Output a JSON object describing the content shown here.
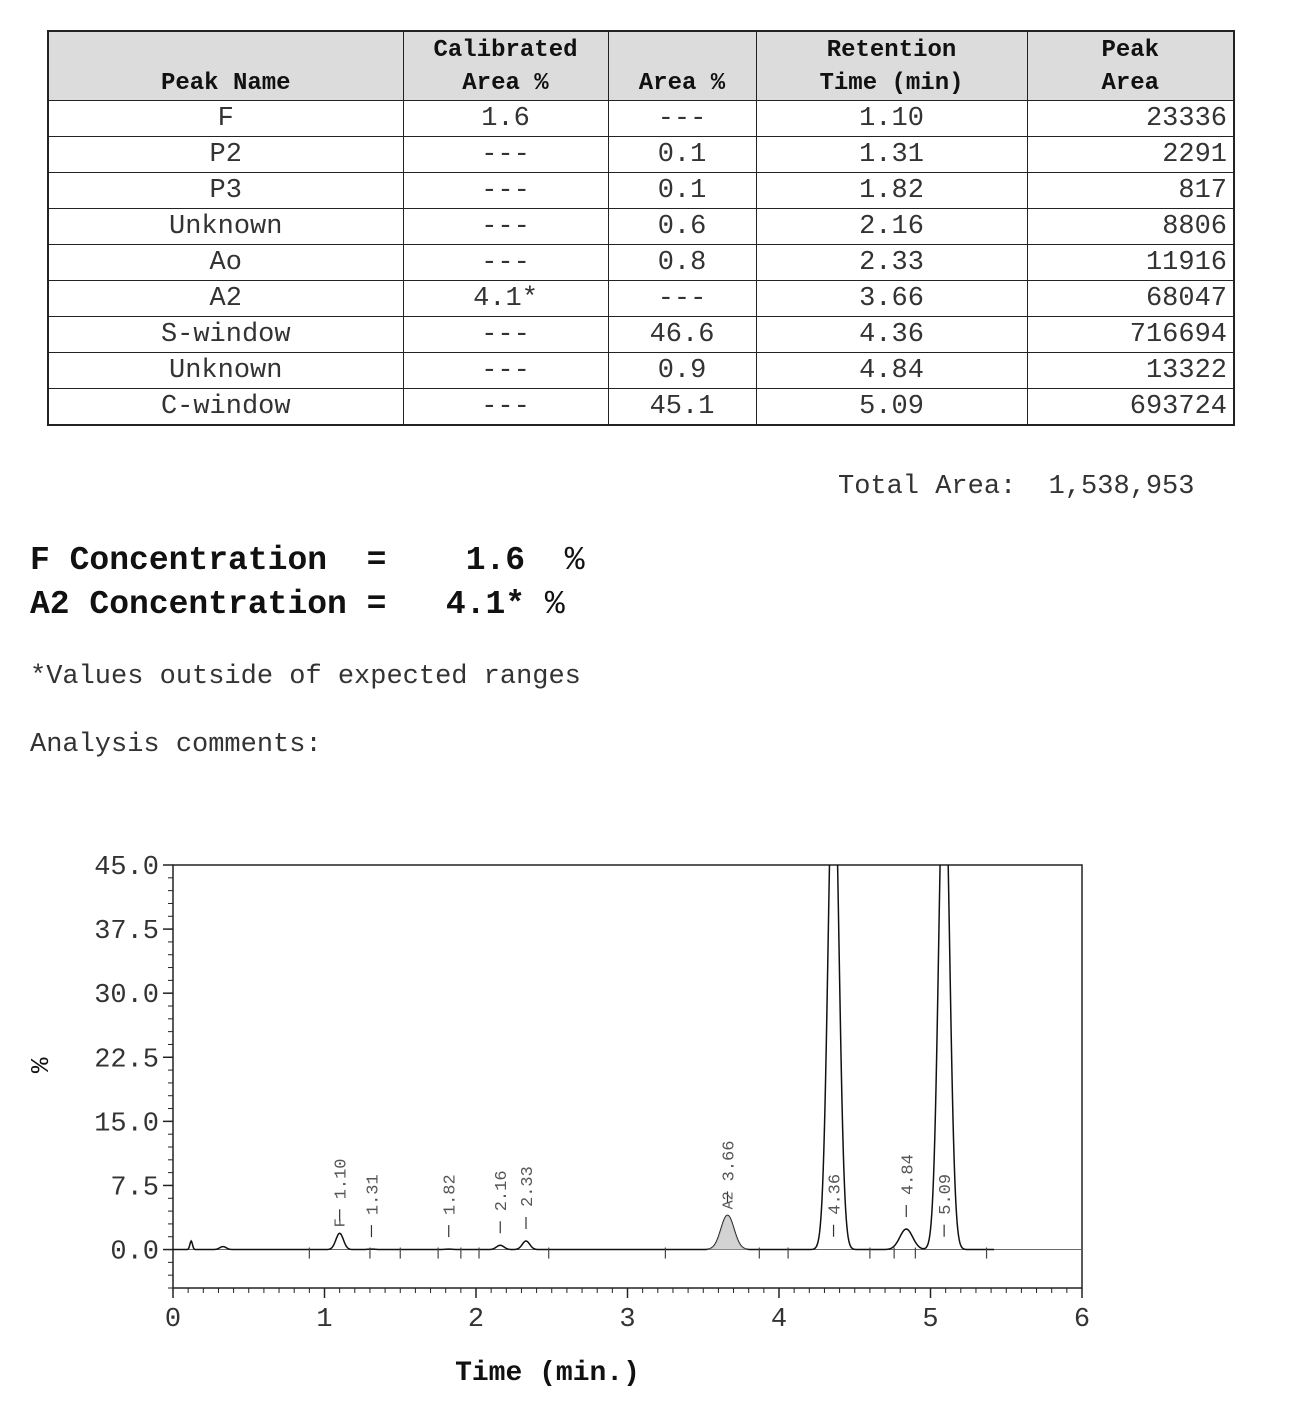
{
  "table": {
    "headers": [
      "Peak Name",
      "Calibrated Area %",
      "Area %",
      "Retention Time (min)",
      "Peak Area"
    ],
    "header_lines": [
      [
        "",
        "Peak Name"
      ],
      [
        "Calibrated",
        "Area %"
      ],
      [
        "",
        "Area %"
      ],
      [
        "Retention",
        "Time (min)"
      ],
      [
        "Peak",
        "Area"
      ]
    ],
    "rows": [
      [
        "F",
        "1.6",
        "---",
        "1.10",
        "23336"
      ],
      [
        "P2",
        "---",
        "0.1",
        "1.31",
        "2291"
      ],
      [
        "P3",
        "---",
        "0.1",
        "1.82",
        "817"
      ],
      [
        "Unknown",
        "---",
        "0.6",
        "2.16",
        "8806"
      ],
      [
        "Ao",
        "---",
        "0.8",
        "2.33",
        "11916"
      ],
      [
        "A2",
        "4.1*",
        "---",
        "3.66",
        "68047"
      ],
      [
        "S-window",
        "---",
        "46.6",
        "4.36",
        "716694"
      ],
      [
        "Unknown",
        "---",
        "0.9",
        "4.84",
        "13322"
      ],
      [
        "C-window",
        "---",
        "45.1",
        "5.09",
        "693724"
      ]
    ]
  },
  "total_area": {
    "label": "Total Area:",
    "value": "1,538,953"
  },
  "concentrations": [
    {
      "label": "F Concentration  =",
      "value": "1.6",
      "unit": "%"
    },
    {
      "label": "A2 Concentration =",
      "value": "4.1*",
      "unit": "%"
    }
  ],
  "footnote": "*Values outside of expected ranges",
  "comments_label": "Analysis comments:",
  "chart_data": {
    "type": "line",
    "xlabel": "Time (min.)",
    "ylabel": "%",
    "xlim": [
      0,
      6
    ],
    "ylim": [
      -4.5,
      45
    ],
    "x_ticks": [
      "0",
      "1",
      "2",
      "3",
      "4",
      "5",
      "6"
    ],
    "y_ticks": [
      "45.0",
      "37.5",
      "30.0",
      "22.5",
      "15.0",
      "7.5",
      "0.0"
    ],
    "baseline": [
      [
        0.0,
        0.0
      ],
      [
        0.1,
        0.2
      ],
      [
        0.12,
        1.0
      ],
      [
        0.15,
        0.2
      ],
      [
        0.22,
        0.0
      ],
      [
        0.3,
        0.4
      ],
      [
        0.38,
        0.0
      ],
      [
        0.5,
        0.0
      ],
      [
        1.0,
        0.0
      ]
    ],
    "peaks": [
      {
        "rt": 1.1,
        "label": "1.10",
        "name": "F",
        "height": 1.9
      },
      {
        "rt": 1.31,
        "label": "1.31",
        "name": "",
        "height": 0.05
      },
      {
        "rt": 1.82,
        "label": "1.82",
        "name": "",
        "height": 0.05
      },
      {
        "rt": 2.16,
        "label": "2.16",
        "name": "",
        "height": 0.5
      },
      {
        "rt": 2.33,
        "label": "2.33",
        "name": "",
        "height": 1.0
      },
      {
        "rt": 3.66,
        "label": "3.66",
        "name": "A2",
        "height": 4.0
      },
      {
        "rt": 4.36,
        "label": "4.36",
        "name": "",
        "height": 60
      },
      {
        "rt": 4.84,
        "label": "4.84",
        "name": "",
        "height": 2.4
      },
      {
        "rt": 5.09,
        "label": "5.09",
        "name": "",
        "height": 60
      }
    ],
    "grid": false,
    "legend": "none"
  }
}
